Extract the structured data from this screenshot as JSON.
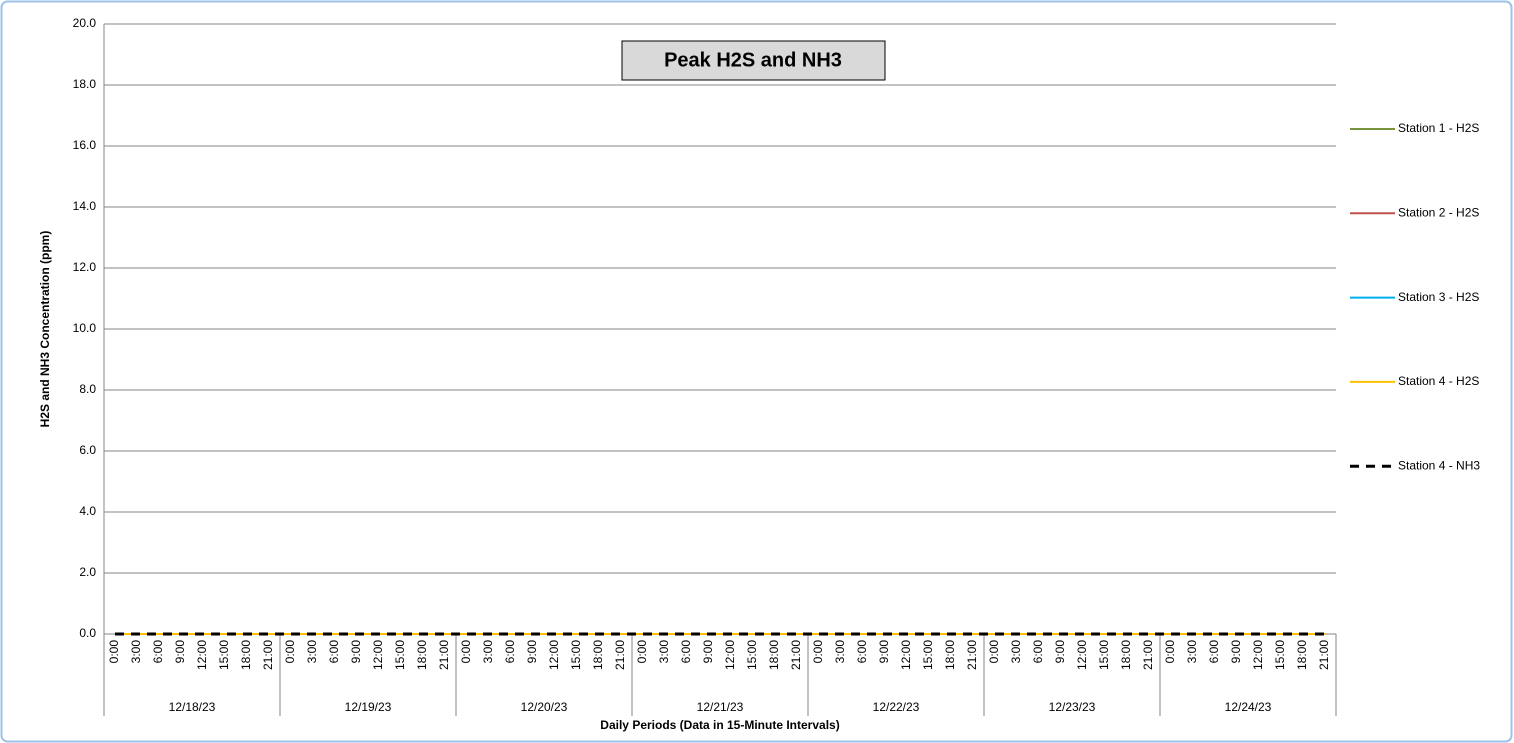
{
  "chart_data": {
    "type": "line",
    "title": "Peak H2S and NH3",
    "y_label": "H2S and NH3 Concentration (ppm)",
    "x_label": "Daily Periods (Data in 15-Minute Intervals)",
    "categories": [
      "0:00",
      "3:00",
      "6:00",
      "9:00",
      "12:00",
      "15:00",
      "18:00",
      "21:00",
      "0:00",
      "3:00",
      "6:00",
      "9:00",
      "12:00",
      "15:00",
      "18:00",
      "21:00",
      "0:00",
      "3:00",
      "6:00",
      "9:00",
      "12:00",
      "15:00",
      "18:00",
      "21:00",
      "0:00",
      "3:00",
      "6:00",
      "9:00",
      "12:00",
      "15:00",
      "18:00",
      "21:00",
      "0:00",
      "3:00",
      "6:00",
      "9:00",
      "12:00",
      "15:00",
      "18:00",
      "21:00",
      "0:00",
      "3:00",
      "6:00",
      "9:00",
      "12:00",
      "15:00",
      "18:00",
      "21:00",
      "0:00",
      "3:00",
      "6:00",
      "9:00",
      "12:00",
      "15:00",
      "18:00",
      "21:00"
    ],
    "date_groups": [
      "12/18/23",
      "12/19/23",
      "12/20/23",
      "12/21/23",
      "12/22/23",
      "12/23/23",
      "12/24/23"
    ],
    "ylim": [
      0,
      20
    ],
    "yticks": [
      {
        "value": 0,
        "label": "0.0"
      },
      {
        "value": 2,
        "label": "2.0"
      },
      {
        "value": 4,
        "label": "4.0"
      },
      {
        "value": 6,
        "label": "6.0"
      },
      {
        "value": 8,
        "label": "8.0"
      },
      {
        "value": 10,
        "label": "10.0"
      },
      {
        "value": 12,
        "label": "12.0"
      },
      {
        "value": 14,
        "label": "14.0"
      },
      {
        "value": 16,
        "label": "16.0"
      },
      {
        "value": 18,
        "label": "18.0"
      },
      {
        "value": 20,
        "label": "20.0"
      }
    ],
    "grid": true,
    "legend": "right",
    "series": [
      {
        "name": "Station 1 - H2S",
        "color": "#77933c",
        "values": [
          0,
          0,
          0,
          0,
          0,
          0,
          0,
          0,
          0,
          0,
          0,
          0,
          0,
          0,
          0,
          0,
          0,
          0,
          0,
          0,
          0,
          0,
          0,
          0,
          0,
          0,
          0,
          0,
          0,
          0,
          0,
          0,
          0,
          0,
          0,
          0,
          0,
          0,
          0,
          0,
          0,
          0,
          0,
          0,
          0,
          0,
          0,
          0,
          0,
          0,
          0,
          0,
          0,
          0,
          0,
          0
        ]
      },
      {
        "name": "Station 2 - H2S",
        "color": "#c0504d",
        "values": [
          0,
          0,
          0,
          0,
          0,
          0,
          0,
          0,
          0,
          0,
          0,
          0,
          0,
          0,
          0,
          0,
          0,
          0,
          0,
          0,
          0,
          0,
          0,
          0,
          0,
          0,
          0,
          0,
          0,
          0,
          0,
          0,
          0,
          0,
          0,
          0,
          0,
          0,
          0,
          0,
          0,
          0,
          0,
          0,
          0,
          0,
          0,
          0,
          0,
          0,
          0,
          0,
          0,
          0,
          0,
          0
        ]
      },
      {
        "name": "Station 3 - H2S",
        "color": "#00b0f0",
        "values": [
          0,
          0,
          0,
          0,
          0,
          0,
          0,
          0,
          0,
          0,
          0,
          0,
          0,
          0,
          0,
          0,
          0,
          0,
          0,
          0,
          0,
          0,
          0,
          0,
          0,
          0,
          0,
          0,
          0,
          0,
          0,
          0,
          0,
          0,
          0,
          0,
          0,
          0,
          0,
          0,
          0,
          0,
          0,
          0,
          0,
          0,
          0,
          0,
          0,
          0,
          0,
          0,
          0,
          0,
          0,
          0
        ]
      },
      {
        "name": "Station 4 - H2S",
        "color": "#ffc000",
        "values": [
          0,
          0,
          0,
          0,
          0,
          0,
          0,
          0,
          0,
          0,
          0,
          0,
          0,
          0,
          0,
          0,
          0,
          0,
          0,
          0,
          0,
          0,
          0,
          0,
          0,
          0,
          0,
          0,
          0,
          0,
          0,
          0,
          0,
          0,
          0,
          0,
          0,
          0,
          0,
          0,
          0,
          0,
          0,
          0,
          0,
          0,
          0,
          0,
          0,
          0,
          0,
          0,
          0,
          0,
          0,
          0
        ]
      },
      {
        "name": "Station 4 - NH3",
        "color": "#000000",
        "dash": true,
        "values": [
          0,
          0,
          0,
          0,
          0,
          0,
          0,
          0,
          0,
          0,
          0,
          0,
          0,
          0,
          0,
          0,
          0,
          0,
          0,
          0,
          0,
          0,
          0,
          0,
          0,
          0,
          0,
          0,
          0,
          0,
          0,
          0,
          0,
          0,
          0,
          0,
          0,
          0,
          0,
          0,
          0,
          0,
          0,
          0,
          0,
          0,
          0,
          0,
          0,
          0,
          0,
          0,
          0,
          0,
          0,
          0
        ]
      }
    ]
  }
}
